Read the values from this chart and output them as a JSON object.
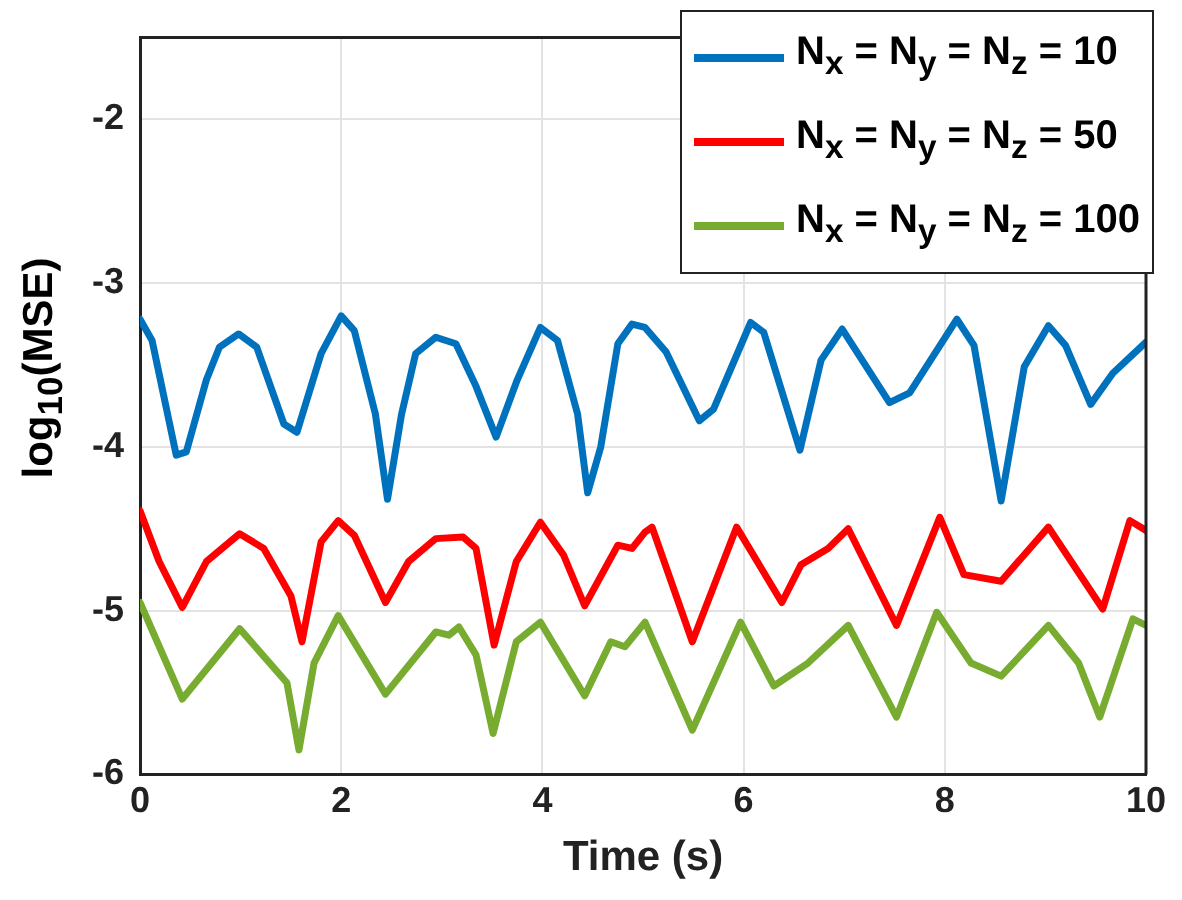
{
  "chart_data": {
    "type": "line",
    "xlabel": "Time (s)",
    "ylabel": "log$_{10}$(MSE)",
    "xlim": [
      0,
      10
    ],
    "xticks": [
      0,
      2,
      4,
      6,
      8,
      10
    ],
    "ylim": [
      -6,
      -1.5
    ],
    "yticks": [
      -6,
      -5,
      -4,
      -3,
      -2
    ],
    "grid": true,
    "legend": "top right",
    "series": [
      {
        "name": "N$_{x}$ = N$_{y}$ = N$_{z}$ = 10",
        "color": "#0072bd",
        "x": [
          0,
          0.12,
          0.36,
          0.46,
          0.66,
          0.79,
          0.98,
          1.16,
          1.43,
          1.56,
          1.8,
          2.0,
          2.13,
          2.34,
          2.46,
          2.6,
          2.74,
          2.94,
          3.14,
          3.34,
          3.54,
          3.75,
          3.98,
          4.15,
          4.35,
          4.45,
          4.58,
          4.75,
          4.89,
          5.02,
          5.23,
          5.56,
          5.7,
          6.07,
          6.2,
          6.56,
          6.77,
          6.98,
          7.45,
          7.65,
          8.12,
          8.29,
          8.56,
          8.79,
          9.03,
          9.2,
          9.45,
          9.67,
          10
        ],
        "values": [
          -3.22,
          -3.35,
          -4.05,
          -4.03,
          -3.59,
          -3.39,
          -3.31,
          -3.39,
          -3.86,
          -3.91,
          -3.43,
          -3.2,
          -3.29,
          -3.8,
          -4.32,
          -3.8,
          -3.43,
          -3.33,
          -3.37,
          -3.63,
          -3.94,
          -3.59,
          -3.27,
          -3.35,
          -3.8,
          -4.28,
          -4.0,
          -3.37,
          -3.25,
          -3.27,
          -3.42,
          -3.84,
          -3.77,
          -3.24,
          -3.3,
          -4.02,
          -3.47,
          -3.28,
          -3.73,
          -3.67,
          -3.22,
          -3.38,
          -4.33,
          -3.51,
          -3.26,
          -3.38,
          -3.74,
          -3.55,
          -3.36
        ]
      },
      {
        "name": "N$_{x}$ = N$_{y}$ = N$_{z}$ = 50",
        "color": "#ff0000",
        "x": [
          0,
          0.19,
          0.42,
          0.66,
          0.99,
          1.23,
          1.5,
          1.61,
          1.8,
          1.97,
          2.13,
          2.44,
          2.67,
          2.94,
          3.21,
          3.34,
          3.52,
          3.74,
          3.98,
          4.21,
          4.42,
          4.75,
          4.89,
          5.02,
          5.09,
          5.49,
          5.93,
          6.38,
          6.57,
          6.84,
          7.04,
          7.52,
          7.95,
          8.19,
          8.56,
          9.03,
          9.57,
          9.84,
          10
        ],
        "values": [
          -4.39,
          -4.7,
          -4.98,
          -4.7,
          -4.53,
          -4.62,
          -4.91,
          -5.19,
          -4.58,
          -4.45,
          -4.54,
          -4.95,
          -4.7,
          -4.56,
          -4.55,
          -4.62,
          -5.21,
          -4.7,
          -4.46,
          -4.66,
          -4.97,
          -4.6,
          -4.62,
          -4.52,
          -4.49,
          -5.19,
          -4.49,
          -4.95,
          -4.72,
          -4.62,
          -4.5,
          -5.09,
          -4.43,
          -4.78,
          -4.82,
          -4.49,
          -4.99,
          -4.45,
          -4.51
        ]
      },
      {
        "name": "N$_{x}$ = N$_{y}$ = N$_{z}$ = 100",
        "color": "#77ac30",
        "x": [
          0,
          0.42,
          0.99,
          1.46,
          1.58,
          1.73,
          1.97,
          2.44,
          2.94,
          3.07,
          3.17,
          3.34,
          3.51,
          3.74,
          3.98,
          4.42,
          4.68,
          4.82,
          5.02,
          5.49,
          5.97,
          6.3,
          6.64,
          7.04,
          7.52,
          7.92,
          8.26,
          8.56,
          9.03,
          9.33,
          9.54,
          9.87,
          10
        ],
        "values": [
          -4.95,
          -5.54,
          -5.11,
          -5.44,
          -5.85,
          -5.32,
          -5.03,
          -5.51,
          -5.13,
          -5.15,
          -5.1,
          -5.27,
          -5.75,
          -5.19,
          -5.07,
          -5.52,
          -5.19,
          -5.22,
          -5.07,
          -5.73,
          -5.07,
          -5.46,
          -5.32,
          -5.09,
          -5.65,
          -5.01,
          -5.32,
          -5.4,
          -5.09,
          -5.32,
          -5.65,
          -5.05,
          -5.09
        ]
      }
    ]
  }
}
